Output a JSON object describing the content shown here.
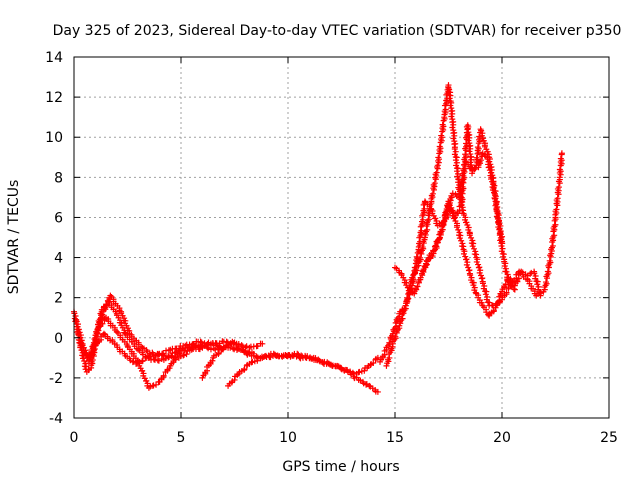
{
  "chart_data": {
    "type": "scatter",
    "title": "Day 325 of 2023, Sidereal Day-to-day VTEC variation (SDTVAR) for receiver p350",
    "xlabel": "GPS time / hours",
    "ylabel": "SDTVAR / TECUs",
    "xlim": [
      0,
      25
    ],
    "ylim": [
      -4,
      14
    ],
    "xticks": [
      0,
      5,
      10,
      15,
      20,
      25
    ],
    "yticks": [
      -4,
      -2,
      0,
      2,
      4,
      6,
      8,
      10,
      12,
      14
    ],
    "grid": true,
    "legend": "none",
    "marker": "+",
    "series": [
      {
        "name": "trace-1",
        "color": "#ff0000",
        "points": [
          [
            0.0,
            1.3
          ],
          [
            0.3,
            -0.4
          ],
          [
            0.6,
            -1.7
          ],
          [
            0.8,
            -1.5
          ],
          [
            1.2,
            0.8
          ],
          [
            1.7,
            2.1
          ],
          [
            2.2,
            1.3
          ],
          [
            2.6,
            0.2
          ],
          [
            3.2,
            -0.5
          ],
          [
            3.8,
            -0.9
          ],
          [
            4.5,
            -0.6
          ],
          [
            5.2,
            -0.4
          ],
          [
            5.8,
            -0.2
          ],
          [
            6.4,
            -0.3
          ],
          [
            7.0,
            -0.2
          ],
          [
            7.6,
            -0.3
          ],
          [
            8.2,
            -0.5
          ],
          [
            8.8,
            -0.3
          ]
        ]
      },
      {
        "name": "trace-2",
        "color": "#ff0000",
        "points": [
          [
            0.1,
            0.9
          ],
          [
            0.4,
            -0.3
          ],
          [
            0.7,
            -1.2
          ],
          [
            1.0,
            0.0
          ],
          [
            1.3,
            1.4
          ],
          [
            1.6,
            1.8
          ],
          [
            2.0,
            1.2
          ],
          [
            2.4,
            0.2
          ],
          [
            3.0,
            -0.6
          ],
          [
            3.6,
            -1.1
          ],
          [
            4.2,
            -1.1
          ],
          [
            4.8,
            -0.7
          ],
          [
            5.4,
            -0.5
          ],
          [
            6.0,
            -0.4
          ],
          [
            6.6,
            -0.6
          ],
          [
            7.2,
            -0.5
          ],
          [
            7.8,
            -0.6
          ],
          [
            8.4,
            -0.8
          ]
        ]
      },
      {
        "name": "trace-3",
        "color": "#ff0000",
        "points": [
          [
            0.2,
            0.2
          ],
          [
            0.5,
            -0.8
          ],
          [
            0.8,
            -1.0
          ],
          [
            1.1,
            0.4
          ],
          [
            1.5,
            1.0
          ],
          [
            2.0,
            0.3
          ],
          [
            2.5,
            -0.4
          ],
          [
            3.0,
            -1.2
          ],
          [
            3.5,
            -2.5
          ],
          [
            4.0,
            -2.2
          ],
          [
            4.5,
            -1.4
          ],
          [
            5.0,
            -0.6
          ],
          [
            5.5,
            -0.4
          ],
          [
            6.0,
            -0.4
          ],
          [
            6.5,
            -0.3
          ],
          [
            7.0,
            -0.5
          ]
        ]
      },
      {
        "name": "trace-4",
        "color": "#ff0000",
        "points": [
          [
            0.3,
            -0.3
          ],
          [
            0.6,
            -1.0
          ],
          [
            1.0,
            -0.4
          ],
          [
            1.4,
            0.2
          ],
          [
            1.9,
            -0.3
          ],
          [
            2.4,
            -0.9
          ],
          [
            2.9,
            -1.3
          ],
          [
            3.4,
            -1.0
          ],
          [
            3.9,
            -0.8
          ],
          [
            4.4,
            -0.9
          ],
          [
            4.9,
            -1.0
          ],
          [
            5.5,
            -0.6
          ],
          [
            6.0,
            -0.5
          ]
        ]
      },
      {
        "name": "trace-5",
        "color": "#ff0000",
        "points": [
          [
            6.0,
            -2.0
          ],
          [
            6.5,
            -1.0
          ],
          [
            7.0,
            -0.5
          ],
          [
            7.4,
            -0.2
          ],
          [
            7.8,
            -0.6
          ],
          [
            8.3,
            -0.9
          ],
          [
            8.8,
            -1.0
          ],
          [
            9.3,
            -0.9
          ],
          [
            9.8,
            -0.9
          ],
          [
            10.3,
            -0.8
          ],
          [
            10.8,
            -0.9
          ],
          [
            11.3,
            -1.1
          ],
          [
            11.8,
            -1.3
          ],
          [
            12.3,
            -1.4
          ],
          [
            12.8,
            -1.7
          ],
          [
            13.3,
            -2.1
          ],
          [
            13.8,
            -2.4
          ],
          [
            14.2,
            -2.7
          ]
        ]
      },
      {
        "name": "trace-6",
        "color": "#ff0000",
        "points": [
          [
            7.2,
            -2.4
          ],
          [
            7.7,
            -1.8
          ],
          [
            8.2,
            -1.3
          ],
          [
            8.7,
            -1.0
          ],
          [
            9.2,
            -0.8
          ],
          [
            9.7,
            -0.9
          ],
          [
            10.2,
            -0.9
          ],
          [
            10.7,
            -1.0
          ],
          [
            11.2,
            -1.0
          ],
          [
            11.7,
            -1.2
          ],
          [
            12.2,
            -1.4
          ],
          [
            12.7,
            -1.6
          ],
          [
            13.2,
            -1.8
          ],
          [
            13.7,
            -1.5
          ],
          [
            14.2,
            -1.0
          ]
        ]
      },
      {
        "name": "trace-7",
        "color": "#ff0000",
        "points": [
          [
            14.3,
            -1.2
          ],
          [
            14.6,
            -0.6
          ],
          [
            14.9,
            0.2
          ],
          [
            15.2,
            1.2
          ],
          [
            15.5,
            1.6
          ],
          [
            15.8,
            3.0
          ],
          [
            16.1,
            3.6
          ],
          [
            16.4,
            5.0
          ],
          [
            16.7,
            6.8
          ],
          [
            17.0,
            8.6
          ],
          [
            17.3,
            11.0
          ],
          [
            17.5,
            12.6
          ],
          [
            17.6,
            11.8
          ],
          [
            17.8,
            9.5
          ],
          [
            18.0,
            7.4
          ],
          [
            18.2,
            6.2
          ],
          [
            18.5,
            5.2
          ],
          [
            18.8,
            4.0
          ],
          [
            19.1,
            2.8
          ],
          [
            19.4,
            1.6
          ],
          [
            19.7,
            1.6
          ],
          [
            20.0,
            1.9
          ],
          [
            20.4,
            2.6
          ],
          [
            20.8,
            3.3
          ],
          [
            21.2,
            2.9
          ],
          [
            21.6,
            2.1
          ],
          [
            22.0,
            2.4
          ],
          [
            22.3,
            4.2
          ],
          [
            22.5,
            6.0
          ],
          [
            22.7,
            8.0
          ],
          [
            22.8,
            9.2
          ]
        ]
      },
      {
        "name": "trace-8",
        "color": "#ff0000",
        "points": [
          [
            14.6,
            -1.4
          ],
          [
            14.9,
            -0.3
          ],
          [
            15.2,
            0.6
          ],
          [
            15.5,
            1.6
          ],
          [
            15.8,
            2.6
          ],
          [
            16.1,
            4.4
          ],
          [
            16.4,
            6.8
          ],
          [
            16.7,
            6.4
          ],
          [
            17.0,
            5.6
          ],
          [
            17.3,
            5.8
          ],
          [
            17.6,
            6.4
          ],
          [
            17.9,
            5.6
          ],
          [
            18.2,
            4.4
          ],
          [
            18.5,
            3.2
          ],
          [
            18.8,
            2.2
          ],
          [
            19.1,
            1.6
          ],
          [
            19.4,
            1.1
          ],
          [
            19.7,
            1.5
          ],
          [
            20.0,
            2.3
          ],
          [
            20.3,
            3.0
          ],
          [
            20.6,
            2.6
          ],
          [
            20.9,
            3.3
          ],
          [
            21.2,
            3.1
          ],
          [
            21.5,
            3.3
          ],
          [
            21.8,
            2.1
          ]
        ]
      },
      {
        "name": "trace-9",
        "color": "#ff0000",
        "points": [
          [
            15.0,
            3.5
          ],
          [
            15.3,
            3.2
          ],
          [
            15.6,
            2.5
          ],
          [
            15.9,
            2.2
          ],
          [
            16.2,
            3.0
          ],
          [
            16.5,
            3.8
          ],
          [
            16.8,
            4.2
          ],
          [
            17.1,
            5.0
          ],
          [
            17.4,
            6.3
          ],
          [
            17.7,
            7.2
          ],
          [
            18.0,
            7.0
          ],
          [
            18.3,
            8.8
          ],
          [
            18.6,
            8.4
          ],
          [
            18.9,
            8.5
          ],
          [
            19.1,
            9.2
          ],
          [
            19.3,
            9.0
          ],
          [
            19.5,
            8.0
          ],
          [
            19.7,
            6.8
          ],
          [
            19.9,
            5.2
          ],
          [
            20.1,
            3.8
          ],
          [
            20.3,
            2.8
          ],
          [
            20.6,
            2.4
          ]
        ]
      },
      {
        "name": "trace-10",
        "color": "#ff0000",
        "points": [
          [
            16.3,
            3.3
          ],
          [
            16.6,
            4.0
          ],
          [
            16.9,
            4.6
          ],
          [
            17.2,
            5.4
          ],
          [
            17.5,
            6.8
          ],
          [
            17.8,
            6.0
          ],
          [
            18.1,
            6.6
          ],
          [
            18.4,
            10.6
          ],
          [
            18.6,
            8.2
          ],
          [
            18.8,
            8.6
          ],
          [
            19.0,
            10.4
          ],
          [
            19.2,
            9.6
          ],
          [
            19.4,
            9.0
          ],
          [
            19.6,
            7.8
          ],
          [
            19.8,
            6.2
          ],
          [
            20.0,
            4.8
          ]
        ]
      }
    ]
  }
}
